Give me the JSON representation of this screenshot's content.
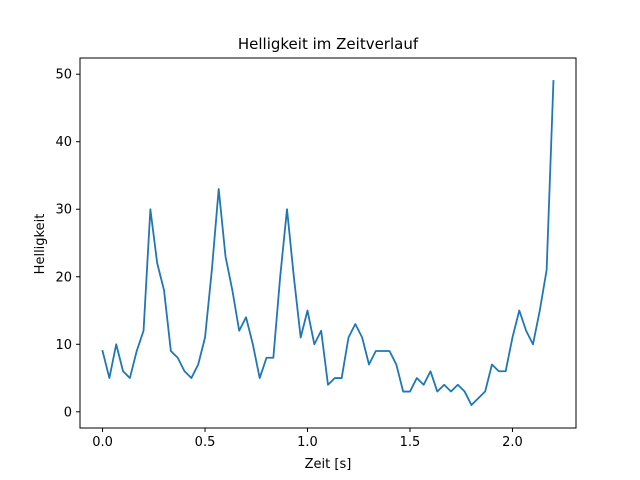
{
  "chart_data": {
    "type": "line",
    "title": "Helligkeit im Zeitverlauf",
    "xlabel": "Zeit [s]",
    "ylabel": "Helligkeit",
    "xlim": [
      -0.11,
      2.31
    ],
    "ylim": [
      -2.4,
      52.4
    ],
    "x_ticks": [
      0.0,
      0.5,
      1.0,
      1.5,
      2.0
    ],
    "x_tick_labels": [
      "0.0",
      "0.5",
      "1.0",
      "1.5",
      "2.0"
    ],
    "y_ticks": [
      0,
      10,
      20,
      30,
      40,
      50
    ],
    "y_tick_labels": [
      "0",
      "10",
      "20",
      "30",
      "40",
      "50"
    ],
    "grid": false,
    "legend": "none",
    "series": [
      {
        "color": "#1f77b4",
        "x": [
          0.0,
          0.0333,
          0.0667,
          0.1,
          0.1333,
          0.1667,
          0.2,
          0.2333,
          0.2667,
          0.3,
          0.3333,
          0.3667,
          0.4,
          0.4333,
          0.4667,
          0.5,
          0.5333,
          0.5667,
          0.6,
          0.6333,
          0.6667,
          0.7,
          0.7333,
          0.7667,
          0.8,
          0.8333,
          0.8667,
          0.9,
          0.9333,
          0.9667,
          1.0,
          1.0333,
          1.0667,
          1.1,
          1.1333,
          1.1667,
          1.2,
          1.2333,
          1.2667,
          1.3,
          1.3333,
          1.3667,
          1.4,
          1.4333,
          1.4667,
          1.5,
          1.5333,
          1.5667,
          1.6,
          1.6333,
          1.6667,
          1.7,
          1.7333,
          1.7667,
          1.8,
          1.8333,
          1.8667,
          1.9,
          1.9333,
          1.9667,
          2.0,
          2.0333,
          2.0667,
          2.1,
          2.1333,
          2.1667,
          2.2
        ],
        "y": [
          9,
          5,
          10,
          6,
          5,
          9,
          12,
          30,
          22,
          18,
          9,
          8,
          6,
          5,
          7,
          11,
          21,
          33,
          23,
          18,
          12,
          14,
          10,
          5,
          8,
          8,
          20,
          30,
          20,
          11,
          15,
          10,
          12,
          4,
          5,
          5,
          11,
          13,
          11,
          7,
          9,
          9,
          9,
          7,
          3,
          3,
          5,
          4,
          6,
          3,
          4,
          3,
          4,
          3,
          1,
          2,
          3,
          7,
          6,
          6,
          11,
          15,
          12,
          10,
          15,
          21,
          49
        ]
      }
    ]
  }
}
